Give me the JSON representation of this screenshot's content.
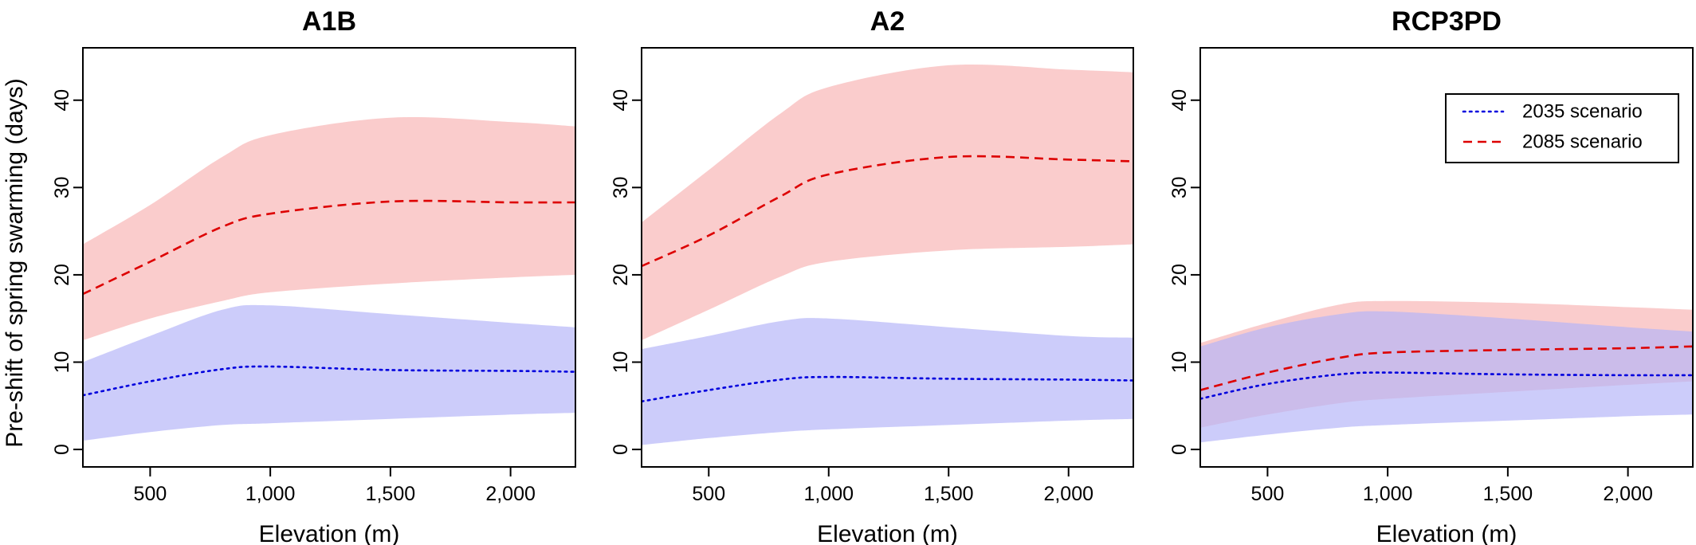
{
  "figure": {
    "ylabel": "Pre-shift of spring swarming (days)",
    "legend": {
      "placement": "top-right of third panel",
      "entries": [
        {
          "label": "2035 scenario",
          "color": "#0000dd",
          "style": "dotted"
        },
        {
          "label": "2085 scenario",
          "color": "#dd0000",
          "style": "dashed"
        }
      ]
    }
  },
  "chart_data": [
    {
      "type": "line",
      "title": "A1B",
      "xlabel": "Elevation (m)",
      "ylabel": "Pre-shift of spring swarming (days)",
      "xlim": [
        220,
        2270
      ],
      "ylim": [
        -2,
        46
      ],
      "xticks": [
        500,
        1000,
        1500,
        2000
      ],
      "xtick_labels": [
        "500",
        "1,000",
        "1,500",
        "2,000"
      ],
      "yticks": [
        0,
        10,
        20,
        30,
        40
      ],
      "series": [
        {
          "name": "2035 scenario",
          "color": "#0000dd",
          "band_color": "#b4b4f7",
          "x": [
            220,
            500,
            800,
            1000,
            1500,
            2000,
            2270
          ],
          "y": [
            6.2,
            7.8,
            9.2,
            9.5,
            9.1,
            9.0,
            8.9
          ],
          "lower": [
            1.0,
            2.0,
            2.8,
            3.0,
            3.5,
            4.0,
            4.2
          ],
          "upper": [
            10.0,
            13.0,
            16.0,
            16.5,
            15.5,
            14.5,
            14.0
          ]
        },
        {
          "name": "2085 scenario",
          "color": "#dd0000",
          "band_color": "#f7b4b4",
          "x": [
            220,
            500,
            800,
            1000,
            1500,
            2000,
            2270
          ],
          "y": [
            17.8,
            21.5,
            25.5,
            27.0,
            28.4,
            28.3,
            28.3
          ],
          "lower": [
            12.5,
            15.0,
            17.0,
            18.0,
            19.0,
            19.7,
            20.0
          ],
          "upper": [
            23.5,
            28.0,
            33.5,
            36.0,
            38.0,
            37.5,
            37.0
          ]
        }
      ]
    },
    {
      "type": "line",
      "title": "A2",
      "xlabel": "Elevation (m)",
      "ylabel": "",
      "xlim": [
        220,
        2270
      ],
      "ylim": [
        -2,
        46
      ],
      "xticks": [
        500,
        1000,
        1500,
        2000
      ],
      "xtick_labels": [
        "500",
        "1,000",
        "1,500",
        "2,000"
      ],
      "yticks": [
        0,
        10,
        20,
        30,
        40
      ],
      "series": [
        {
          "name": "2035 scenario",
          "color": "#0000dd",
          "band_color": "#b4b4f7",
          "x": [
            220,
            500,
            800,
            1000,
            1500,
            2000,
            2270
          ],
          "y": [
            5.5,
            6.8,
            8.0,
            8.3,
            8.1,
            8.0,
            7.9
          ],
          "lower": [
            0.5,
            1.3,
            2.0,
            2.3,
            2.8,
            3.3,
            3.5
          ],
          "upper": [
            11.5,
            13.0,
            14.7,
            15.0,
            14.0,
            13.0,
            12.8
          ]
        },
        {
          "name": "2085 scenario",
          "color": "#dd0000",
          "band_color": "#f7b4b4",
          "x": [
            220,
            500,
            800,
            1000,
            1500,
            2000,
            2270
          ],
          "y": [
            21.0,
            24.5,
            29.0,
            31.5,
            33.5,
            33.2,
            33.0
          ],
          "lower": [
            12.5,
            16.0,
            19.8,
            21.5,
            22.8,
            23.2,
            23.5
          ],
          "upper": [
            26.0,
            32.0,
            38.5,
            41.5,
            44.0,
            43.5,
            43.2
          ]
        }
      ]
    },
    {
      "type": "line",
      "title": "RCP3PD",
      "xlabel": "Elevation (m)",
      "ylabel": "",
      "xlim": [
        220,
        2270
      ],
      "ylim": [
        -2,
        46
      ],
      "xticks": [
        500,
        1000,
        1500,
        2000
      ],
      "xtick_labels": [
        "500",
        "1,000",
        "1,500",
        "2,000"
      ],
      "yticks": [
        0,
        10,
        20,
        30,
        40
      ],
      "series": [
        {
          "name": "2035 scenario",
          "color": "#0000dd",
          "band_color": "#b4b4f7",
          "x": [
            220,
            500,
            800,
            1000,
            1500,
            2000,
            2270
          ],
          "y": [
            5.8,
            7.5,
            8.6,
            8.8,
            8.6,
            8.5,
            8.5
          ],
          "lower": [
            0.8,
            1.7,
            2.5,
            2.8,
            3.3,
            3.8,
            4.0
          ],
          "upper": [
            11.8,
            14.0,
            15.5,
            15.8,
            15.0,
            14.0,
            13.5
          ]
        },
        {
          "name": "2085 scenario",
          "color": "#dd0000",
          "band_color": "#f7b4b4",
          "x": [
            220,
            500,
            800,
            1000,
            1500,
            2000,
            2270
          ],
          "y": [
            6.8,
            8.8,
            10.5,
            11.1,
            11.4,
            11.6,
            11.8
          ],
          "lower": [
            2.5,
            4.0,
            5.3,
            5.8,
            6.6,
            7.4,
            7.8
          ],
          "upper": [
            12.2,
            14.5,
            16.6,
            17.0,
            16.8,
            16.3,
            16.0
          ]
        }
      ]
    }
  ]
}
